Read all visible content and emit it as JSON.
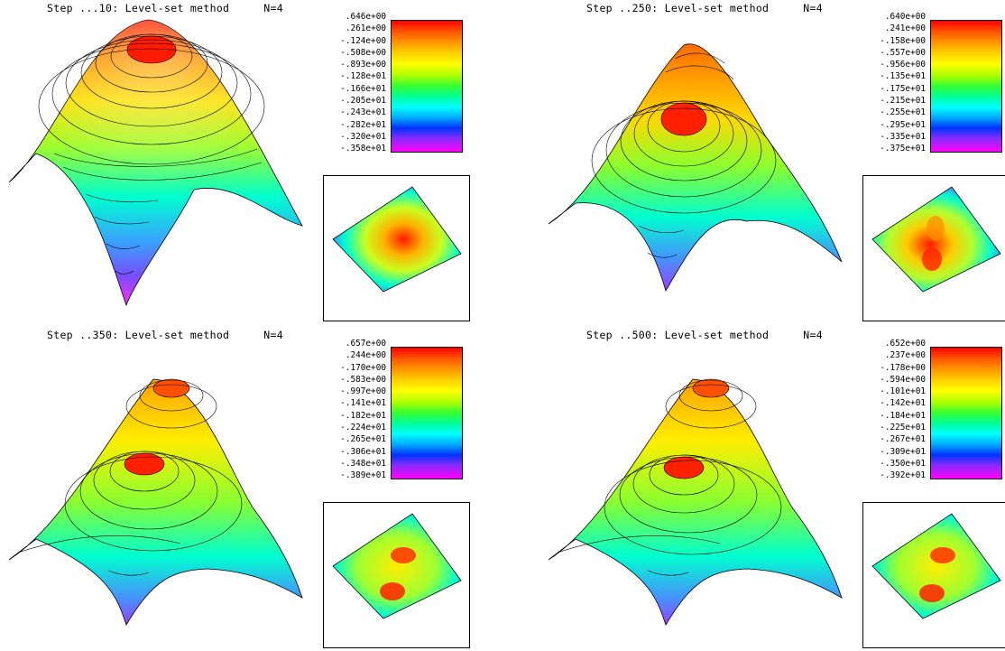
{
  "panels": [
    {
      "title": "Step ...10: Level-set method",
      "n_label": "N=4",
      "colorbar_labels": [
        ".646e+00",
        ".261e+00",
        "-.124e+00",
        "-.508e+00",
        "-.893e+00",
        "-.128e+01",
        "-.166e+01",
        "-.205e+01",
        "-.243e+01",
        "-.282e+01",
        "-.320e+01",
        "-.358e+01"
      ],
      "peaks": 1
    },
    {
      "title": "Step ..250: Level-set method",
      "n_label": "N=4",
      "colorbar_labels": [
        ".640e+00",
        ".241e+00",
        "-.158e+00",
        "-.557e+00",
        "-.956e+00",
        "-.135e+01",
        "-.175e+01",
        "-.215e+01",
        "-.255e+01",
        "-.295e+01",
        "-.335e+01",
        "-.375e+01"
      ],
      "peaks": 2
    },
    {
      "title": "Step ..350: Level-set method",
      "n_label": "N=4",
      "colorbar_labels": [
        ".657e+00",
        ".244e+00",
        "-.170e+00",
        "-.583e+00",
        "-.997e+00",
        "-.141e+01",
        "-.182e+01",
        "-.224e+01",
        "-.265e+01",
        "-.306e+01",
        "-.348e+01",
        "-.389e+01"
      ],
      "peaks": 2
    },
    {
      "title": "Step ..500: Level-set method",
      "n_label": "N=4",
      "colorbar_labels": [
        ".652e+00",
        ".237e+00",
        "-.178e+00",
        "-.594e+00",
        "-.101e+01",
        "-.142e+01",
        "-.184e+01",
        "-.225e+01",
        "-.267e+01",
        "-.309e+01",
        "-.350e+01",
        "-.392e+01"
      ],
      "peaks": 2
    }
  ]
}
